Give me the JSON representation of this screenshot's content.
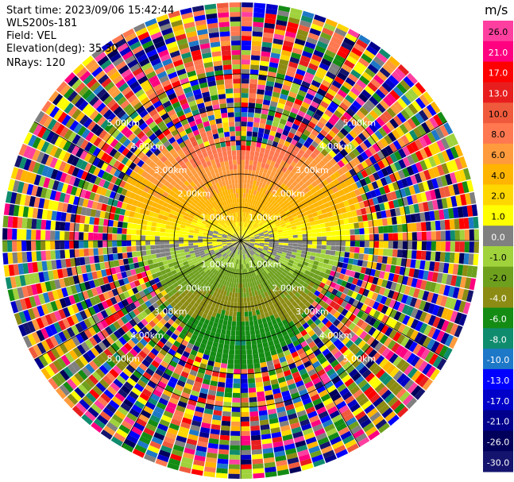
{
  "header": {
    "start_time": "Start time: 2023/09/06 15:42:44",
    "instrument": "WLS200s-181",
    "field": "Field: VEL",
    "elevation": "Elevation(deg): 35.30",
    "nrays": "NRays: 120"
  },
  "chart_data": {
    "type": "ppi",
    "field": "VEL",
    "elevation_deg": 35.3,
    "nrays": 120,
    "range_rings_km": [
      1,
      2,
      3,
      4,
      5
    ],
    "ring_labels": [
      "1.00km",
      "2.00km",
      "3.00km",
      "4.00km",
      "5.00km"
    ],
    "colorbar": {
      "unit": "m/s",
      "ticks": [
        "26.0",
        "21.0",
        "17.0",
        "13.0",
        "10.0",
        "8.0",
        "6.0",
        "4.0",
        "2.0",
        "1.0",
        "0.0",
        "-1.0",
        "-2.0",
        "-4.0",
        "-6.0",
        "-8.0",
        "-10.0",
        "-13.0",
        "-17.0",
        "-21.0",
        "-26.0",
        "-30.0"
      ],
      "colors": [
        "#ff3fa0",
        "#ff0080",
        "#ff0000",
        "#e81e1e",
        "#f05a3c",
        "#ff7850",
        "#ff9b3c",
        "#ffb400",
        "#ffd700",
        "#ffff00",
        "#808080",
        "#a0d23c",
        "#6ea01e",
        "#8c8c14",
        "#148c14",
        "#0f8c6e",
        "#1e78c8",
        "#0000ff",
        "#0000c8",
        "#00008c",
        "#00005a",
        "#14146e"
      ]
    }
  }
}
